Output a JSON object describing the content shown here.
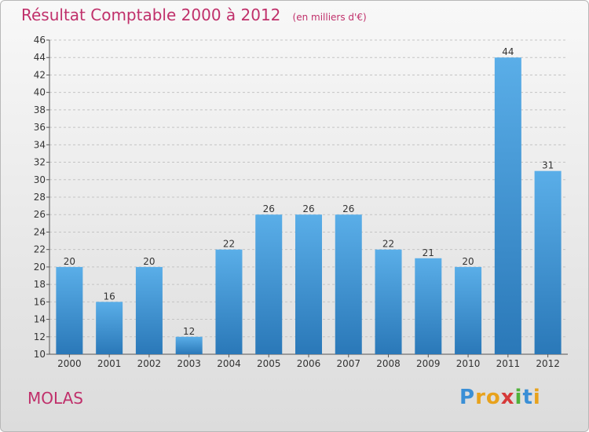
{
  "header": {
    "title": "Résultat Comptable 2000 à 2012",
    "unit": "(en milliers d'€)"
  },
  "footer": {
    "commune": "MOLAS",
    "logo": "Proxiti"
  },
  "colors": {
    "accent": "#c0306b",
    "bar_light": "#5aaee8",
    "bar_dark": "#2a78b8"
  },
  "chart_data": {
    "type": "bar",
    "title": "Résultat Comptable 2000 à 2012",
    "xlabel": "",
    "ylabel": "",
    "ylim": [
      10,
      46
    ],
    "ytick_step": 2,
    "grid": true,
    "categories": [
      "2000",
      "2001",
      "2002",
      "2003",
      "2004",
      "2005",
      "2006",
      "2007",
      "2008",
      "2009",
      "2010",
      "2011",
      "2012"
    ],
    "values": [
      20,
      16,
      20,
      12,
      22,
      26,
      26,
      26,
      22,
      21,
      20,
      44,
      31
    ]
  }
}
